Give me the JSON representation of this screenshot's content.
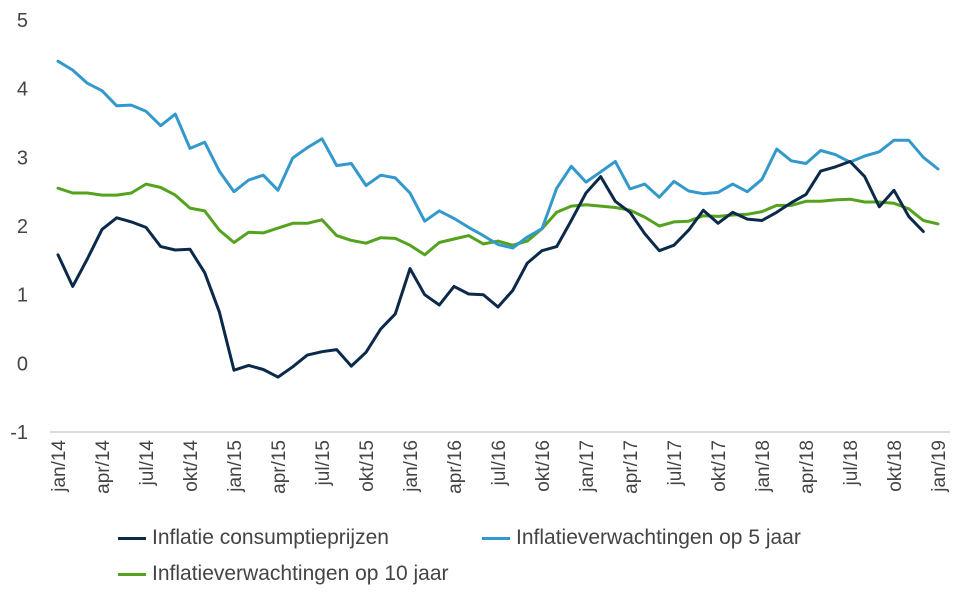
{
  "chart_data": {
    "type": "line",
    "x": [
      "jan/14",
      "feb/14",
      "mrt/14",
      "apr/14",
      "mei/14",
      "jun/14",
      "jul/14",
      "aug/14",
      "sep/14",
      "okt/14",
      "nov/14",
      "dec/14",
      "jan/15",
      "feb/15",
      "mrt/15",
      "apr/15",
      "mei/15",
      "jun/15",
      "jul/15",
      "aug/15",
      "sep/15",
      "okt/15",
      "nov/15",
      "dec/15",
      "jan/16",
      "feb/16",
      "mrt/16",
      "apr/16",
      "mei/16",
      "jun/16",
      "jul/16",
      "aug/16",
      "sep/16",
      "okt/16",
      "nov/16",
      "dec/16",
      "jan/17",
      "feb/17",
      "mrt/17",
      "apr/17",
      "mei/17",
      "jun/17",
      "jul/17",
      "aug/17",
      "sep/17",
      "okt/17",
      "nov/17",
      "dec/17",
      "jan/18",
      "feb/18",
      "mrt/18",
      "apr/18",
      "mei/18",
      "jun/18",
      "jul/18",
      "aug/18",
      "sep/18",
      "okt/18",
      "nov/18",
      "dec/18",
      "jan/19"
    ],
    "x_tick_labels": [
      "jan/14",
      "apr/14",
      "jul/14",
      "okt/14",
      "jan/15",
      "apr/15",
      "jul/15",
      "okt/15",
      "jan/16",
      "apr/16",
      "jul/16",
      "okt/16",
      "jan/17",
      "apr/17",
      "jul/17",
      "okt/17",
      "jan/18",
      "apr/18",
      "jul/18",
      "okt/18",
      "jan/19"
    ],
    "y_ticks": [
      "-1",
      "0",
      "1",
      "2",
      "3",
      "4",
      "5"
    ],
    "ylim": [
      -1,
      5
    ],
    "grid": false,
    "legend_position": "bottom",
    "series": [
      {
        "name": "Inflatie consumptieprijzen",
        "color": "#0b2a4a",
        "values": [
          1.58,
          1.12,
          1.52,
          1.95,
          2.12,
          2.06,
          1.98,
          1.7,
          1.65,
          1.66,
          1.32,
          0.75,
          -0.1,
          -0.03,
          -0.09,
          -0.2,
          -0.05,
          0.12,
          0.17,
          0.2,
          -0.04,
          0.16,
          0.5,
          0.72,
          1.38,
          1.0,
          0.85,
          1.12,
          1.01,
          1.0,
          0.82,
          1.06,
          1.46,
          1.64,
          1.7,
          2.08,
          2.48,
          2.72,
          2.36,
          2.2,
          1.89,
          1.64,
          1.72,
          1.94,
          2.23,
          2.04,
          2.2,
          2.1,
          2.08,
          2.2,
          2.34,
          2.46,
          2.8,
          2.86,
          2.94,
          2.72,
          2.28,
          2.52,
          2.14,
          1.92,
          null
        ]
      },
      {
        "name": "Inflatieverwachtingen op 5 jaar",
        "color": "#3399cc",
        "values": [
          4.4,
          4.27,
          4.08,
          3.97,
          3.75,
          3.76,
          3.67,
          3.46,
          3.63,
          3.13,
          3.22,
          2.8,
          2.5,
          2.67,
          2.74,
          2.52,
          2.99,
          3.14,
          3.27,
          2.88,
          2.91,
          2.59,
          2.74,
          2.7,
          2.48,
          2.07,
          2.22,
          2.11,
          1.98,
          1.86,
          1.73,
          1.68,
          1.84,
          1.96,
          2.55,
          2.87,
          2.64,
          2.79,
          2.94,
          2.54,
          2.61,
          2.42,
          2.65,
          2.51,
          2.47,
          2.49,
          2.61,
          2.5,
          2.68,
          3.12,
          2.95,
          2.91,
          3.1,
          3.04,
          2.93,
          3.02,
          3.08,
          3.25,
          3.25,
          3.0,
          2.83
        ]
      },
      {
        "name": "Inflatieverwachtingen op 10 jaar",
        "color": "#54a21e",
        "values": [
          2.55,
          2.48,
          2.48,
          2.45,
          2.45,
          2.48,
          2.61,
          2.56,
          2.45,
          2.26,
          2.22,
          1.94,
          1.76,
          1.91,
          1.9,
          1.97,
          2.04,
          2.04,
          2.09,
          1.86,
          1.79,
          1.75,
          1.83,
          1.82,
          1.72,
          1.58,
          1.76,
          1.81,
          1.86,
          1.74,
          1.78,
          1.72,
          1.78,
          1.96,
          2.2,
          2.29,
          2.31,
          2.29,
          2.27,
          2.23,
          2.13,
          2.0,
          2.06,
          2.07,
          2.15,
          2.14,
          2.16,
          2.17,
          2.21,
          2.3,
          2.3,
          2.36,
          2.36,
          2.38,
          2.39,
          2.35,
          2.35,
          2.33,
          2.25,
          2.08,
          2.03
        ]
      }
    ]
  }
}
